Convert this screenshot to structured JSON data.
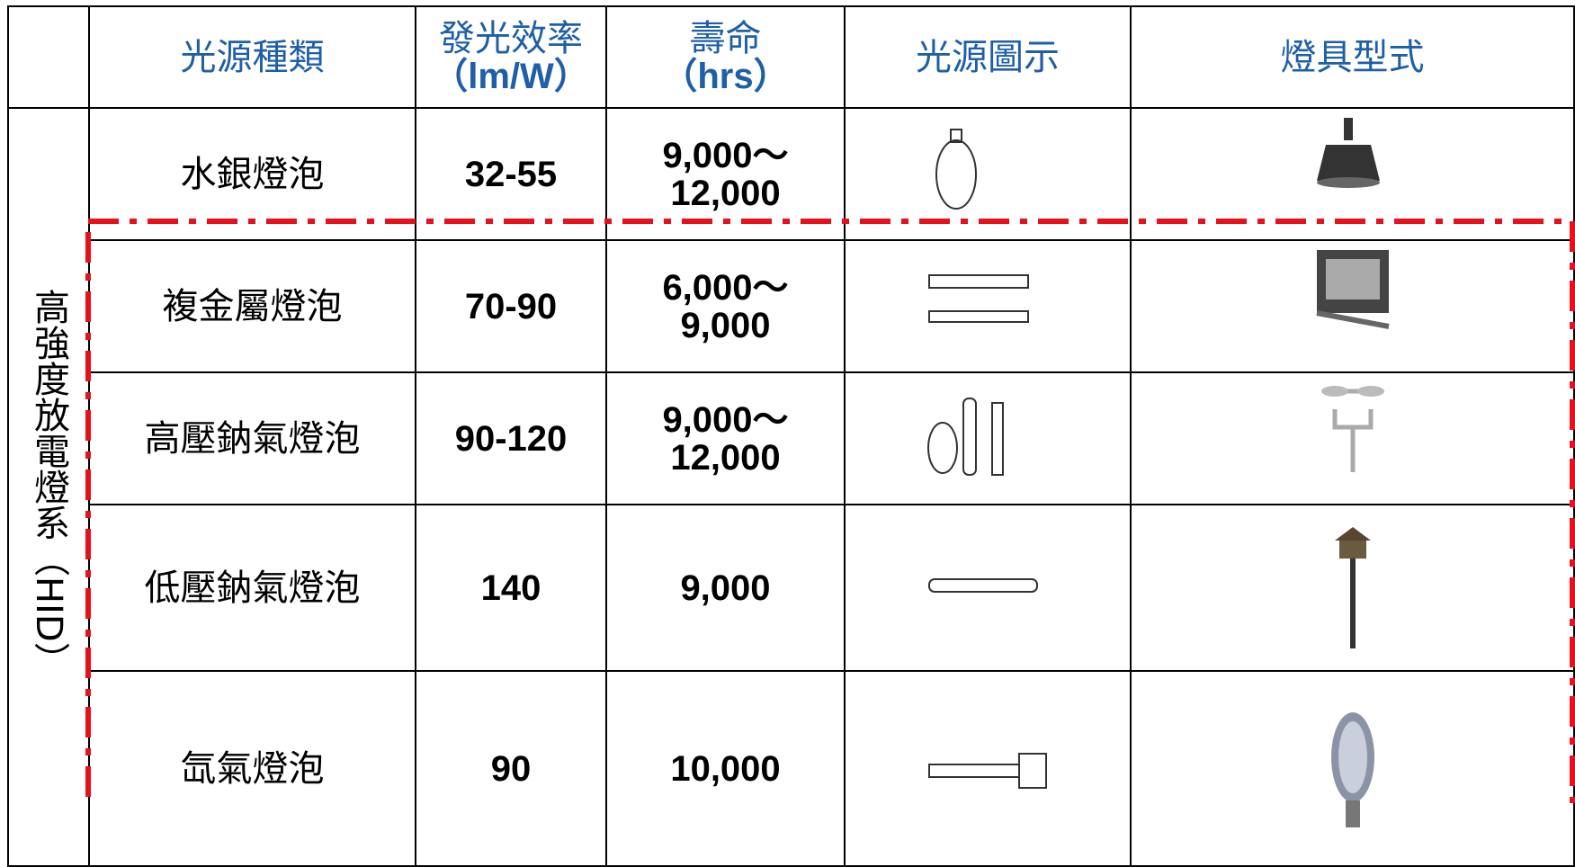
{
  "header": {
    "columns": [
      [
        "光源種類"
      ],
      [
        "發光效率",
        "（lm/W）"
      ],
      [
        "壽命",
        "（hrs）"
      ],
      [
        "光源圖示"
      ],
      [
        "燈具型式"
      ]
    ]
  },
  "group_label": "高強度放電燈系（HID）",
  "rows": [
    {
      "name": "水銀燈泡",
      "efficacy": "32-55",
      "life": [
        "9,000～",
        "12,000"
      ]
    },
    {
      "name": "複金屬燈泡",
      "efficacy": "70-90",
      "life": [
        "6,000～",
        "9,000"
      ]
    },
    {
      "name": "高壓鈉氣燈泡",
      "efficacy": "90-120",
      "life": [
        "9,000～",
        "12,000"
      ]
    },
    {
      "name": "低壓鈉氣燈泡",
      "efficacy": "140",
      "life": [
        "9,000"
      ]
    },
    {
      "name": "氙氣燈泡",
      "efficacy": "90",
      "life": [
        "10,000"
      ]
    }
  ]
}
